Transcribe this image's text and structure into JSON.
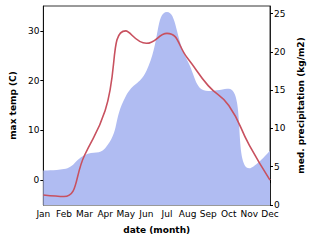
{
  "chart_data": {
    "type": "line",
    "categories": [
      "Jan",
      "Feb",
      "Mar",
      "Apr",
      "May",
      "Jun",
      "Jul",
      "Aug",
      "Sep",
      "Oct",
      "Nov",
      "Dec"
    ],
    "x_label": "date (month)",
    "y_label": "max temp (C)",
    "y2_label": "med. precipitation (kg/m2)",
    "series": [
      {
        "name": "med. precipitation",
        "type": "area",
        "axis": "y2",
        "color": "#b0bcf2",
        "values": [
          4.5,
          4.7,
          6.5,
          7.4,
          14.2,
          17.5,
          25.2,
          18.8,
          14.9,
          15.2,
          4.8,
          7.1
        ]
      },
      {
        "name": "max temp",
        "type": "line",
        "color": "#c8515f",
        "values": [
          -3,
          -3.3,
          5,
          14,
          30,
          27.5,
          29.5,
          24.5,
          19,
          15,
          7,
          0
        ]
      }
    ],
    "ylim": [
      -5,
      35
    ],
    "yticks": [
      0,
      10,
      20,
      30
    ],
    "y2lim": [
      0,
      26
    ],
    "y2ticks": [
      0,
      5,
      10,
      15,
      20,
      25
    ],
    "grid": false
  }
}
